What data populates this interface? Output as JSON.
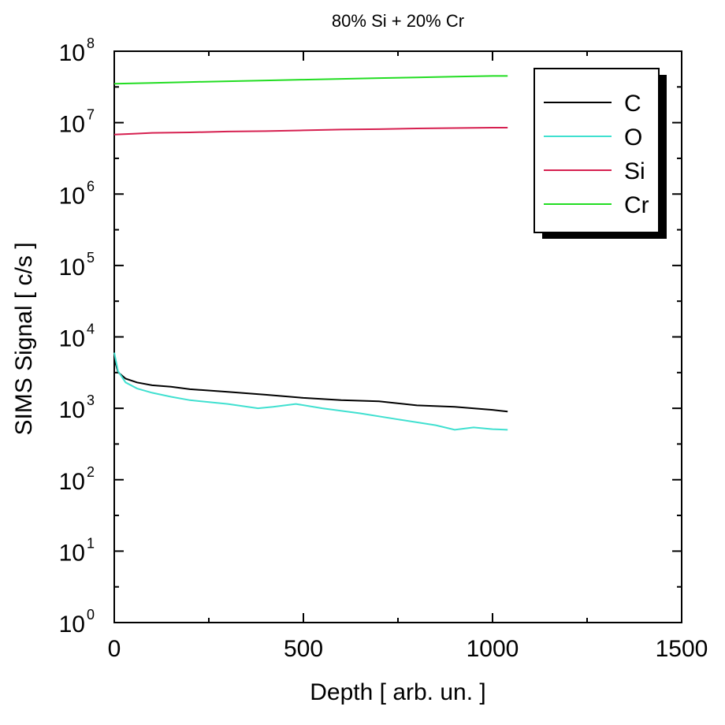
{
  "chart_data": {
    "type": "line",
    "title": "80% Si + 20% Cr",
    "xlabel": "Depth [ arb. un. ]",
    "ylabel": "SIMS Signal [ c/s ]",
    "xlim": [
      0,
      1500
    ],
    "ylim": [
      1,
      100000000
    ],
    "yscale": "log",
    "x_ticks": [
      "0",
      "500",
      "1000",
      "1500"
    ],
    "y_ticks": [
      {
        "base": "10",
        "exp": "0"
      },
      {
        "base": "10",
        "exp": "1"
      },
      {
        "base": "10",
        "exp": "2"
      },
      {
        "base": "10",
        "exp": "3"
      },
      {
        "base": "10",
        "exp": "4"
      },
      {
        "base": "10",
        "exp": "5"
      },
      {
        "base": "10",
        "exp": "6"
      },
      {
        "base": "10",
        "exp": "7"
      },
      {
        "base": "10",
        "exp": "8"
      }
    ],
    "legend_position": "top-right",
    "grid": false,
    "series": [
      {
        "name": "C",
        "color": "#000000",
        "x": [
          0,
          10,
          30,
          60,
          100,
          150,
          200,
          300,
          400,
          500,
          600,
          700,
          800,
          900,
          1000,
          1040
        ],
        "y": [
          5000,
          3200,
          2600,
          2300,
          2100,
          2000,
          1850,
          1700,
          1550,
          1400,
          1300,
          1250,
          1100,
          1050,
          950,
          900
        ]
      },
      {
        "name": "O",
        "color": "#40e0d0",
        "x": [
          0,
          10,
          30,
          60,
          100,
          150,
          200,
          300,
          380,
          420,
          480,
          550,
          650,
          750,
          850,
          900,
          950,
          1000,
          1040
        ],
        "y": [
          6000,
          3300,
          2300,
          1900,
          1650,
          1450,
          1300,
          1150,
          1000,
          1050,
          1150,
          1000,
          850,
          700,
          580,
          500,
          540,
          510,
          500
        ]
      },
      {
        "name": "Si",
        "color": "#d62050",
        "x": [
          0,
          50,
          100,
          200,
          300,
          400,
          500,
          600,
          700,
          800,
          900,
          1000,
          1040
        ],
        "y": [
          6800000,
          7000000,
          7200000,
          7300000,
          7500000,
          7600000,
          7800000,
          8000000,
          8100000,
          8300000,
          8400000,
          8500000,
          8500000
        ]
      },
      {
        "name": "Cr",
        "color": "#22dd22",
        "x": [
          0,
          50,
          100,
          200,
          300,
          400,
          500,
          600,
          700,
          800,
          900,
          1000,
          1040
        ],
        "y": [
          35000000,
          35500000,
          36000000,
          37000000,
          38000000,
          39000000,
          40000000,
          41000000,
          42000000,
          43000000,
          44000000,
          45000000,
          45000000
        ]
      }
    ]
  }
}
